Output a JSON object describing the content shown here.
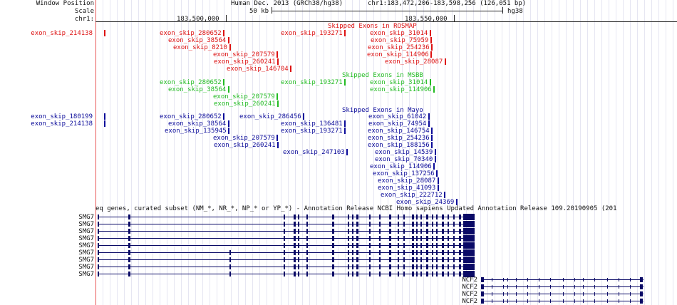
{
  "header": {
    "window_position_label": "Window Position",
    "scale_label": "Scale",
    "chrom_label": "chr1:",
    "assembly": "Human Dec. 2013 (GRCh38/hg38)",
    "position": "chr1:183,472,206-183,598,256 (126,051 bp)",
    "scale_text": "50 kb",
    "scale_assembly": "hg38",
    "coord_1": "183,500,000",
    "coord_2": "183,550,000"
  },
  "rosmap": {
    "title": "Skipped Exons in ROSMAP",
    "color": "#dd1111",
    "left_label": "exon_skip_214138",
    "items": [
      "exon_skip_280652",
      "exon_skip_193271",
      "exon_skip_31014",
      "exon_skip_38564",
      "exon_skip_75959",
      "exon_skip_8210",
      "exon_skip_254236",
      "exon_skip_207579",
      "exon_skip_114906",
      "exon_skip_260241",
      "exon_skip_28087",
      "exon_skip_146704"
    ]
  },
  "msbb": {
    "title": "Skipped Exons in MSBB",
    "color": "#22bb22",
    "items": [
      "exon_skip_280652",
      "exon_skip_193271",
      "exon_skip_31014",
      "exon_skip_38564",
      "exon_skip_114906",
      "exon_skip_207579",
      "exon_skip_260241"
    ]
  },
  "mayo": {
    "title": "Skipped Exons in Mayo",
    "color": "#0a0a99",
    "left_labels": [
      "exon_skip_180199",
      "exon_skip_214138"
    ],
    "items": [
      "exon_skip_280652",
      "exon_skip_286456",
      "exon_skip_61042",
      "exon_skip_38564",
      "exon_skip_136481",
      "exon_skip_74954",
      "exon_skip_135945",
      "exon_skip_193271",
      "exon_skip_146754",
      "exon_skip_207579",
      "exon_skip_254236",
      "exon_skip_260241",
      "exon_skip_188156",
      "exon_skip_247103",
      "exon_skip_14539",
      "exon_skip_70340",
      "exon_skip_114906",
      "exon_skip_137256",
      "exon_skip_28087",
      "exon_skip_41093",
      "exon_skip_222712",
      "exon_skip_24369"
    ]
  },
  "refseq": {
    "title": "eq genes, curated subset (NM_*, NR_*, NP_* or YP_*) - Annotation Release NCBI Homo sapiens Updated Annotation Release 109.20190905 (201",
    "gene_a": "SMG7",
    "gene_b": "NCF2"
  }
}
